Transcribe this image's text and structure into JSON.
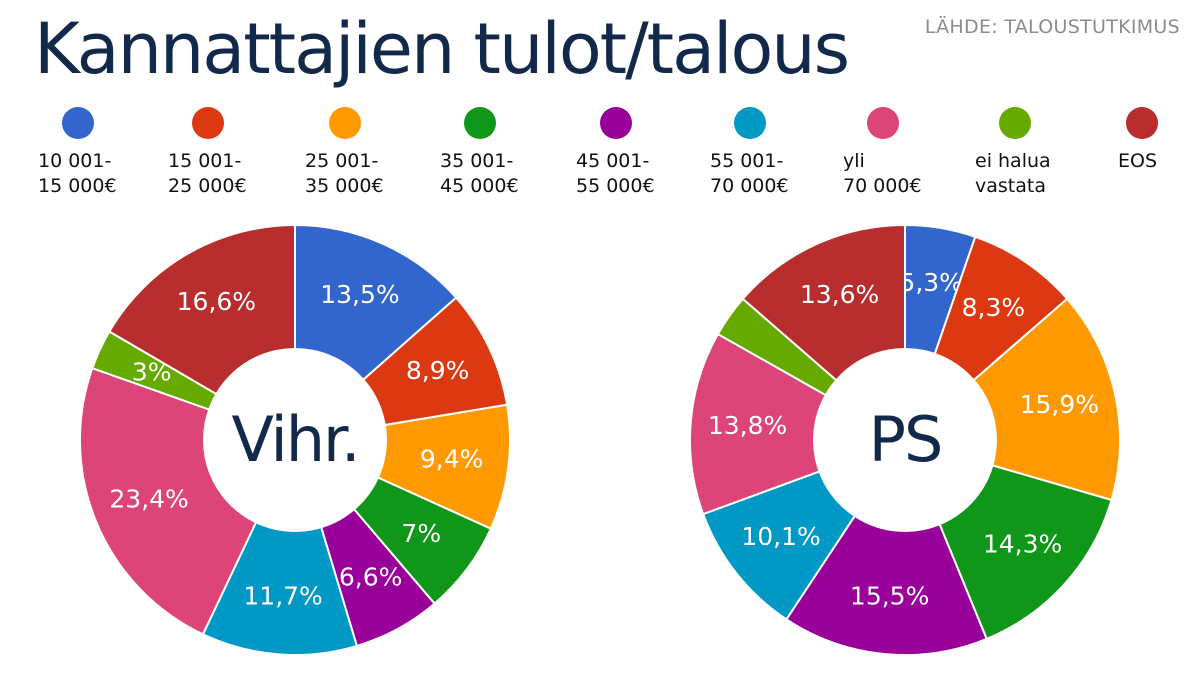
{
  "header": {
    "title": "Kannattajien tulot/talous",
    "source": "LÄHDE: TALOUSTUTKIMUS"
  },
  "legend": [
    {
      "label": "10 001-\n15 000€",
      "color": "#3366cc"
    },
    {
      "label": "15 001-\n25 000€",
      "color": "#dc3912"
    },
    {
      "label": "25 001-\n35 000€",
      "color": "#ff9900"
    },
    {
      "label": "35 001-\n45 000€",
      "color": "#109618"
    },
    {
      "label": "45 001-\n55 000€",
      "color": "#990099"
    },
    {
      "label": "55 001-\n70 000€",
      "color": "#0099c6"
    },
    {
      "label": "yli\n70 000€",
      "color": "#dd4477"
    },
    {
      "label": "ei halua\nvastata",
      "color": "#66aa00"
    },
    {
      "label": "EOS",
      "color": "#b82e2e"
    }
  ],
  "chart_data": [
    {
      "type": "pie",
      "title": "Vihr.",
      "categories": [
        "10 001-15 000€",
        "15 001-25 000€",
        "25 001-35 000€",
        "35 001-45 000€",
        "45 001-55 000€",
        "55 001-70 000€",
        "yli 70 000€",
        "ei halua vastata",
        "EOS"
      ],
      "values": [
        13.5,
        8.9,
        9.4,
        7,
        6.6,
        11.7,
        23.4,
        3,
        16.6
      ],
      "labels": [
        "13,5%",
        "8,9%",
        "9,4%",
        "7%",
        "6,6%",
        "11,7%",
        "23,4%",
        "3%",
        "16,6%"
      ]
    },
    {
      "type": "pie",
      "title": "PS",
      "categories": [
        "10 001-15 000€",
        "15 001-25 000€",
        "25 001-35 000€",
        "35 001-45 000€",
        "45 001-55 000€",
        "55 001-70 000€",
        "yli 70 000€",
        "ei halua vastata",
        "EOS"
      ],
      "values": [
        5.3,
        8.3,
        15.9,
        14.3,
        15.5,
        10.1,
        13.8,
        3.2,
        13.6
      ],
      "labels": [
        "5,3%",
        "8,3%",
        "15,9%",
        "14,3%",
        "15,5%",
        "10,1%",
        "13,8%",
        "",
        "13,6%"
      ]
    }
  ]
}
